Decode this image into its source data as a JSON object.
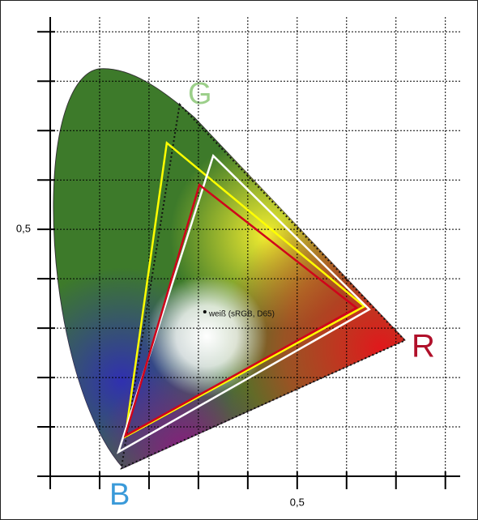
{
  "chart_data": {
    "type": "gamut",
    "xlim": [
      0,
      0.83
    ],
    "ylim": [
      0,
      0.93
    ],
    "xticks": [
      0,
      0.1,
      0.2,
      0.3,
      0.4,
      0.5,
      0.6,
      0.7,
      0.8
    ],
    "yticks": [
      0,
      0.1,
      0.2,
      0.3,
      0.4,
      0.5,
      0.6,
      0.7,
      0.8,
      0.9
    ],
    "xtick_labels": [
      {
        "value": 0.5,
        "label": "0,5"
      }
    ],
    "ytick_labels": [
      {
        "value": 0.5,
        "label": "0,5"
      }
    ],
    "grid": true,
    "series": [
      {
        "color": "#111111",
        "dashed": true,
        "x": [
          0.262,
          0.718,
          0.144
        ],
        "y": [
          0.753,
          0.275,
          0.016
        ]
      },
      {
        "color": "#ffff00",
        "dashed": false,
        "x": [
          0.236,
          0.636,
          0.152
        ],
        "y": [
          0.675,
          0.344,
          0.08
        ]
      },
      {
        "color": "#ffffff",
        "dashed": false,
        "x": [
          0.33,
          0.646,
          0.138
        ],
        "y": [
          0.649,
          0.338,
          0.049
        ]
      },
      {
        "color": "#d0021b",
        "dashed": false,
        "x": [
          0.302,
          0.62,
          0.152
        ],
        "y": [
          0.59,
          0.341,
          0.082
        ]
      }
    ],
    "white_point": {
      "x": 0.313,
      "y": 0.333,
      "label": "weiß (sRGB, D65)"
    },
    "annotations": [
      {
        "text": "G",
        "color": "#9ccf8a"
      },
      {
        "text": "R",
        "color": "#b0102a"
      },
      {
        "text": "B",
        "color": "#3a9ad9"
      }
    ]
  }
}
